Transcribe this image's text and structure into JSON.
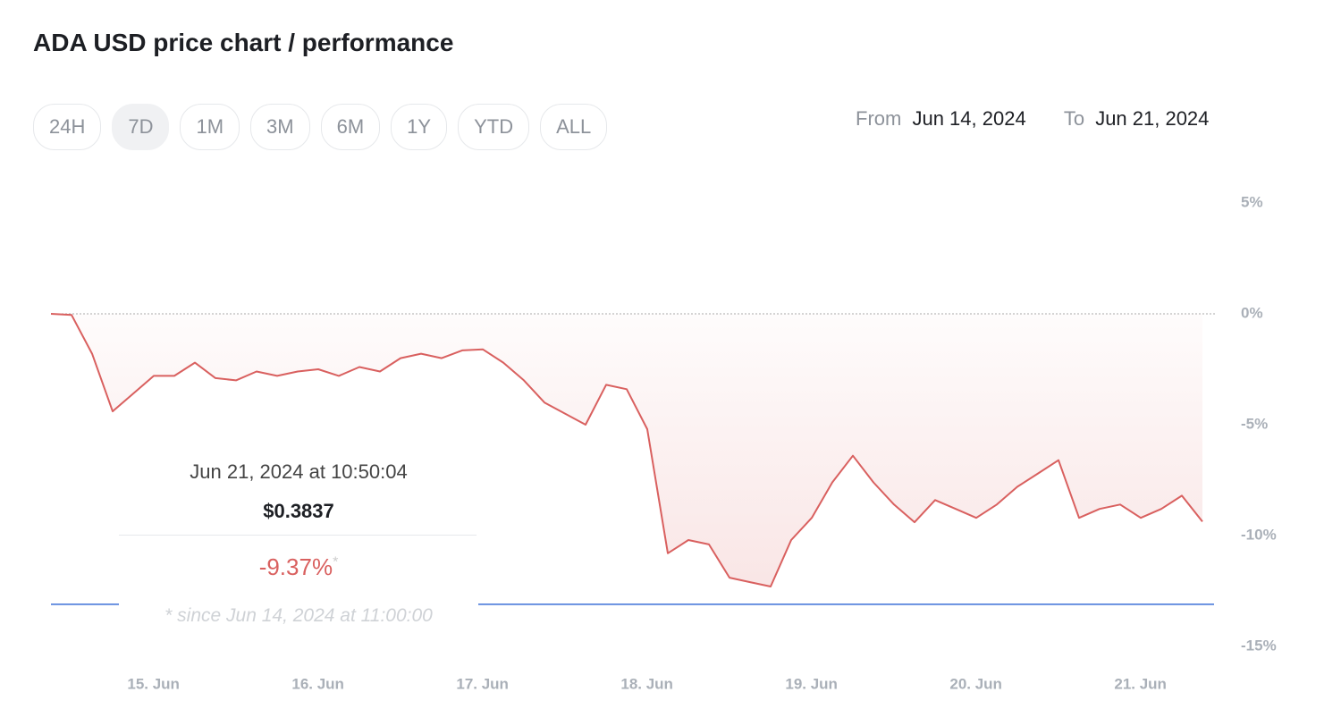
{
  "header": {
    "title": "ADA USD price chart / performance"
  },
  "ranges": {
    "options": [
      "24H",
      "7D",
      "1M",
      "3M",
      "6M",
      "1Y",
      "YTD",
      "ALL"
    ],
    "active": "7D"
  },
  "date_range": {
    "from_label": "From",
    "from": "Jun 14, 2024",
    "to_label": "To",
    "to": "Jun 21, 2024"
  },
  "tooltip": {
    "time": "Jun 21, 2024 at 10:50:04",
    "price": "$0.3837",
    "change": "-9.37%",
    "change_mark": "*",
    "footnote": "* since Jun 14, 2024 at 11:00:00"
  },
  "chart_data": {
    "type": "line",
    "x": [
      "2024-06-14T11:00",
      "2024-06-14T14:00",
      "2024-06-14T17:00",
      "2024-06-14T20:00",
      "2024-06-14T23:00",
      "2024-06-15T02:00",
      "2024-06-15T05:00",
      "2024-06-15T08:00",
      "2024-06-15T11:00",
      "2024-06-15T14:00",
      "2024-06-15T17:00",
      "2024-06-15T20:00",
      "2024-06-15T23:00",
      "2024-06-16T02:00",
      "2024-06-16T05:00",
      "2024-06-16T08:00",
      "2024-06-16T11:00",
      "2024-06-16T14:00",
      "2024-06-16T17:00",
      "2024-06-16T20:00",
      "2024-06-16T23:00",
      "2024-06-17T02:00",
      "2024-06-17T05:00",
      "2024-06-17T08:00",
      "2024-06-17T11:00",
      "2024-06-17T14:00",
      "2024-06-17T17:00",
      "2024-06-17T20:00",
      "2024-06-17T23:00",
      "2024-06-18T02:00",
      "2024-06-18T05:00",
      "2024-06-18T08:00",
      "2024-06-18T11:00",
      "2024-06-18T14:00",
      "2024-06-18T17:00",
      "2024-06-18T20:00",
      "2024-06-18T23:00",
      "2024-06-19T02:00",
      "2024-06-19T05:00",
      "2024-06-19T08:00",
      "2024-06-19T11:00",
      "2024-06-19T14:00",
      "2024-06-19T17:00",
      "2024-06-19T20:00",
      "2024-06-19T23:00",
      "2024-06-20T02:00",
      "2024-06-20T05:00",
      "2024-06-20T08:00",
      "2024-06-20T11:00",
      "2024-06-20T14:00",
      "2024-06-20T17:00",
      "2024-06-20T20:00",
      "2024-06-20T23:00",
      "2024-06-21T02:00",
      "2024-06-21T05:00",
      "2024-06-21T08:00",
      "2024-06-21T11:00"
    ],
    "series": [
      {
        "name": "ADA USD",
        "color": "#d9605f",
        "values": [
          0,
          -0.05,
          -1.8,
          -4.4,
          -3.6,
          -2.8,
          -2.8,
          -2.2,
          -2.9,
          -3.0,
          -2.6,
          -2.8,
          -2.6,
          -2.5,
          -2.8,
          -2.4,
          -2.6,
          -2.0,
          -1.8,
          -2.0,
          -1.65,
          -1.6,
          -2.2,
          -3.0,
          -4.0,
          -4.5,
          -5.0,
          -3.2,
          -3.4,
          -5.2,
          -10.8,
          -10.2,
          -10.4,
          -11.9,
          -12.1,
          -12.3,
          -10.2,
          -9.2,
          -7.6,
          -6.4,
          -7.6,
          -8.6,
          -9.4,
          -8.4,
          -8.8,
          -9.2,
          -8.6,
          -7.8,
          -7.2,
          -6.6,
          -9.2,
          -8.8,
          -8.6,
          -9.2,
          -8.8,
          -8.2,
          -9.37
        ]
      }
    ],
    "xlim": [
      "2024-06-14T11:00",
      "2024-06-21T11:00"
    ],
    "xticks": [
      {
        "value": "2024-06-15T00:00",
        "label": "15. Jun"
      },
      {
        "value": "2024-06-16T00:00",
        "label": "16. Jun"
      },
      {
        "value": "2024-06-17T00:00",
        "label": "17. Jun"
      },
      {
        "value": "2024-06-18T00:00",
        "label": "18. Jun"
      },
      {
        "value": "2024-06-19T00:00",
        "label": "19. Jun"
      },
      {
        "value": "2024-06-20T00:00",
        "label": "20. Jun"
      },
      {
        "value": "2024-06-21T00:00",
        "label": "21. Jun"
      }
    ],
    "ylim": [
      -15,
      5
    ],
    "yticks": [
      {
        "value": 5,
        "label": "5%"
      },
      {
        "value": 0,
        "label": "0%"
      },
      {
        "value": -5,
        "label": "-5%"
      },
      {
        "value": -10,
        "label": "-10%"
      },
      {
        "value": -15,
        "label": "-15%"
      }
    ],
    "grid": false,
    "zero_line": true,
    "min_line": {
      "value": -13.1,
      "color": "#3b6fd8"
    }
  }
}
